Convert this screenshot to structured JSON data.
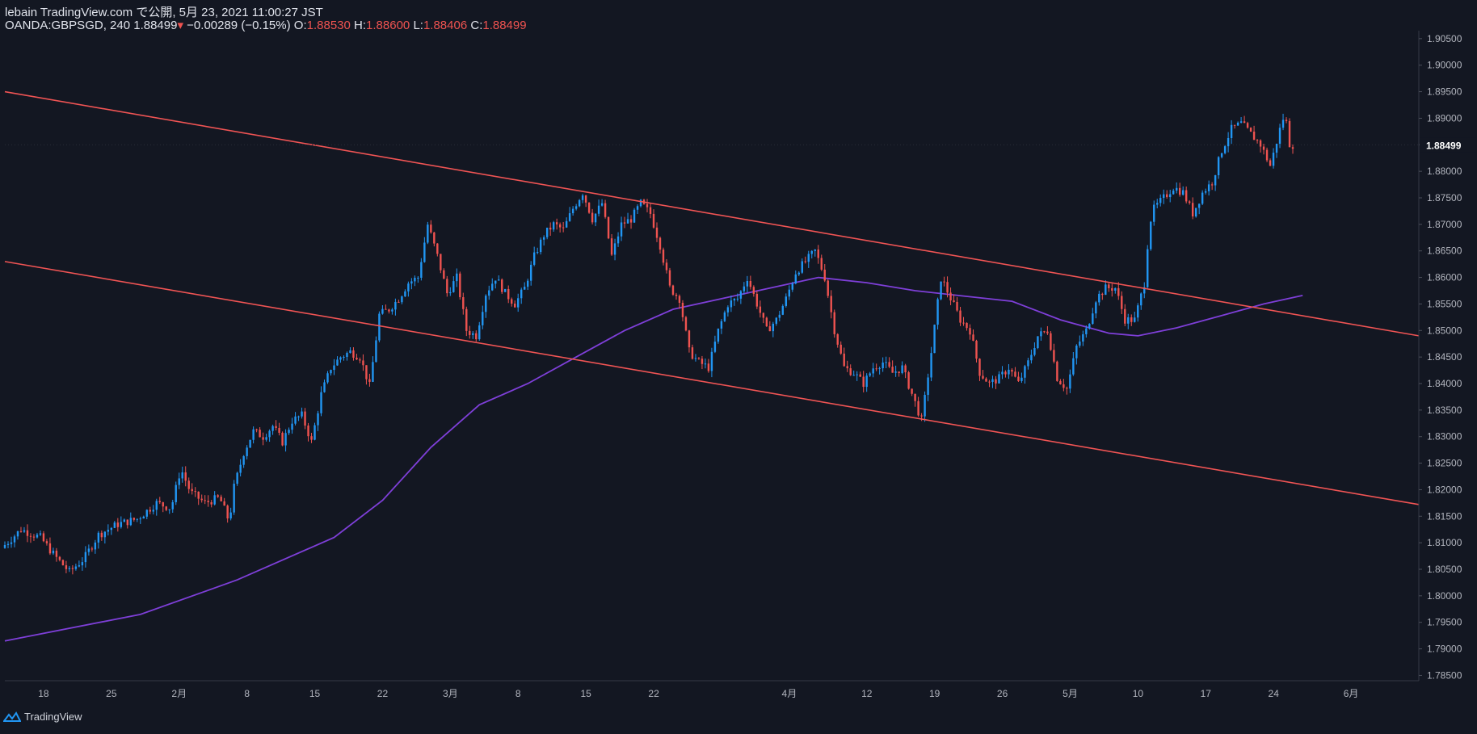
{
  "header": {
    "published": "lebain TradingView.com で公開, 5月 23, 2021 11:00:27 JST",
    "symbol": "OANDA:GBPSGD, 240",
    "last": "1.88499",
    "change": "−0.00289 (−0.15%)",
    "o_label": "O:",
    "o_value": "1.88530",
    "h_label": "H:",
    "h_value": "1.88600",
    "l_label": "L:",
    "l_value": "1.88406",
    "c_label": "C:",
    "c_value": "1.88499"
  },
  "footer": {
    "brand": "TradingView",
    "logo_icon": "tradingview-logo-icon"
  },
  "colors": {
    "background": "#131722",
    "up": "#2196f3",
    "down": "#ef5350",
    "channel": "#f05454",
    "ma": "#7e3fd8",
    "axis_text": "#b2b5be",
    "grid_line": "#2a2e39"
  },
  "chart_data": {
    "type": "candlestick",
    "timeframe": "240",
    "y_range": [
      1.784,
      1.9065
    ],
    "y_ticks": [
      "1.78500",
      "1.79000",
      "1.79500",
      "1.80000",
      "1.80500",
      "1.81000",
      "1.81500",
      "1.82000",
      "1.82500",
      "1.83000",
      "1.83500",
      "1.84000",
      "1.84500",
      "1.85000",
      "1.85500",
      "1.86000",
      "1.86500",
      "1.87000",
      "1.87500",
      "1.88000",
      "1.88500",
      "1.89000",
      "1.89500",
      "1.90000",
      "1.90500"
    ],
    "last_price": 1.88499,
    "last_price_label": "1.88499",
    "x_ticks": [
      "18",
      "25",
      "2月",
      "8",
      "15",
      "22",
      "3月",
      "8",
      "15",
      "22",
      "4月",
      "12",
      "19",
      "26",
      "5月",
      "10",
      "17",
      "24",
      "6月"
    ],
    "x_tick_days": [
      0,
      7,
      14,
      21,
      28,
      35,
      42,
      49,
      56,
      63,
      77,
      85,
      92,
      99,
      106,
      113,
      120,
      127,
      135
    ],
    "x_range_days": [
      -4,
      142
    ],
    "start_date": "2021-01-18",
    "path_anchors": [
      [
        -4,
        1.809
      ],
      [
        -2,
        1.8125
      ],
      [
        0,
        1.811
      ],
      [
        1.5,
        1.8075
      ],
      [
        3,
        1.8045
      ],
      [
        4.5,
        1.807
      ],
      [
        6,
        1.8115
      ],
      [
        8,
        1.8135
      ],
      [
        10,
        1.8145
      ],
      [
        12,
        1.8175
      ],
      [
        13.5,
        1.8165
      ],
      [
        14.5,
        1.824
      ],
      [
        15.5,
        1.8195
      ],
      [
        17,
        1.8175
      ],
      [
        18.5,
        1.8185
      ],
      [
        19.5,
        1.814
      ],
      [
        20,
        1.8205
      ],
      [
        21,
        1.827
      ],
      [
        22,
        1.831
      ],
      [
        23,
        1.83
      ],
      [
        24,
        1.832
      ],
      [
        25,
        1.829
      ],
      [
        26,
        1.833
      ],
      [
        27,
        1.834
      ],
      [
        28,
        1.829
      ],
      [
        29,
        1.838
      ],
      [
        30,
        1.843
      ],
      [
        31,
        1.845
      ],
      [
        32,
        1.846
      ],
      [
        33,
        1.845
      ],
      [
        34,
        1.8395
      ],
      [
        35,
        1.853
      ],
      [
        36,
        1.854
      ],
      [
        37,
        1.856
      ],
      [
        38,
        1.859
      ],
      [
        39,
        1.86
      ],
      [
        39.5,
        1.865
      ],
      [
        40,
        1.87
      ],
      [
        41,
        1.864
      ],
      [
        42,
        1.857
      ],
      [
        43,
        1.86
      ],
      [
        44,
        1.85
      ],
      [
        45,
        1.849
      ],
      [
        46,
        1.857
      ],
      [
        47,
        1.86
      ],
      [
        48,
        1.857
      ],
      [
        49,
        1.855
      ],
      [
        50,
        1.858
      ],
      [
        51,
        1.864
      ],
      [
        52,
        1.868
      ],
      [
        53,
        1.87
      ],
      [
        54,
        1.869
      ],
      [
        55,
        1.873
      ],
      [
        56,
        1.876
      ],
      [
        57,
        1.871
      ],
      [
        58,
        1.874
      ],
      [
        59,
        1.864
      ],
      [
        60,
        1.87
      ],
      [
        61,
        1.871
      ],
      [
        62,
        1.874
      ],
      [
        63,
        1.872
      ],
      [
        64,
        1.866
      ],
      [
        65,
        1.858
      ],
      [
        66,
        1.856
      ],
      [
        67,
        1.846
      ],
      [
        68,
        1.844
      ],
      [
        69,
        1.843
      ],
      [
        70,
        1.85
      ],
      [
        71,
        1.855
      ],
      [
        72,
        1.856
      ],
      [
        73,
        1.86
      ],
      [
        74,
        1.855
      ],
      [
        75,
        1.85
      ],
      [
        76,
        1.852
      ],
      [
        77,
        1.856
      ],
      [
        78,
        1.861
      ],
      [
        79,
        1.863
      ],
      [
        80,
        1.865
      ],
      [
        81,
        1.86
      ],
      [
        82,
        1.85
      ],
      [
        83,
        1.843
      ],
      [
        84,
        1.842
      ],
      [
        85,
        1.84
      ],
      [
        86,
        1.843
      ],
      [
        87,
        1.844
      ],
      [
        88,
        1.842
      ],
      [
        89,
        1.843
      ],
      [
        90,
        1.838
      ],
      [
        91,
        1.833
      ],
      [
        92,
        1.846
      ],
      [
        93,
        1.86
      ],
      [
        94,
        1.856
      ],
      [
        95,
        1.852
      ],
      [
        96,
        1.85
      ],
      [
        97,
        1.842
      ],
      [
        98,
        1.84
      ],
      [
        99,
        1.841
      ],
      [
        100,
        1.843
      ],
      [
        101,
        1.84
      ],
      [
        102,
        1.844
      ],
      [
        103,
        1.849
      ],
      [
        104,
        1.85
      ],
      [
        105,
        1.841
      ],
      [
        106,
        1.839
      ],
      [
        107,
        1.847
      ],
      [
        108,
        1.85
      ],
      [
        109,
        1.856
      ],
      [
        110,
        1.858
      ],
      [
        111,
        1.858
      ],
      [
        112,
        1.852
      ],
      [
        113,
        1.852
      ],
      [
        114,
        1.859
      ],
      [
        114.5,
        1.87
      ],
      [
        115,
        1.873
      ],
      [
        116,
        1.875
      ],
      [
        117,
        1.877
      ],
      [
        118,
        1.876
      ],
      [
        119,
        1.872
      ],
      [
        120,
        1.876
      ],
      [
        121,
        1.878
      ],
      [
        122,
        1.884
      ],
      [
        123,
        1.888
      ],
      [
        124,
        1.889
      ],
      [
        125,
        1.887
      ],
      [
        126,
        1.885
      ],
      [
        127,
        1.881
      ],
      [
        128,
        1.888
      ],
      [
        128.5,
        1.891
      ],
      [
        129,
        1.885
      ]
    ],
    "moving_average": [
      [
        -4,
        1.7915
      ],
      [
        10,
        1.7965
      ],
      [
        20,
        1.803
      ],
      [
        30,
        1.811
      ],
      [
        35,
        1.818
      ],
      [
        40,
        1.828
      ],
      [
        45,
        1.836
      ],
      [
        50,
        1.84
      ],
      [
        55,
        1.845
      ],
      [
        60,
        1.85
      ],
      [
        65,
        1.854
      ],
      [
        70,
        1.856
      ],
      [
        75,
        1.858
      ],
      [
        80,
        1.86
      ],
      [
        85,
        1.859
      ],
      [
        90,
        1.8575
      ],
      [
        95,
        1.8565
      ],
      [
        100,
        1.8555
      ],
      [
        105,
        1.852
      ],
      [
        110,
        1.8495
      ],
      [
        113,
        1.849
      ],
      [
        117,
        1.8505
      ],
      [
        122,
        1.853
      ],
      [
        126,
        1.855
      ],
      [
        130,
        1.8566
      ]
    ],
    "channel_upper": {
      "from": [
        -4,
        1.895
      ],
      "to": [
        142,
        1.849
      ]
    },
    "channel_lower": {
      "from": [
        -4,
        1.863
      ],
      "to": [
        142,
        1.8172
      ]
    }
  }
}
